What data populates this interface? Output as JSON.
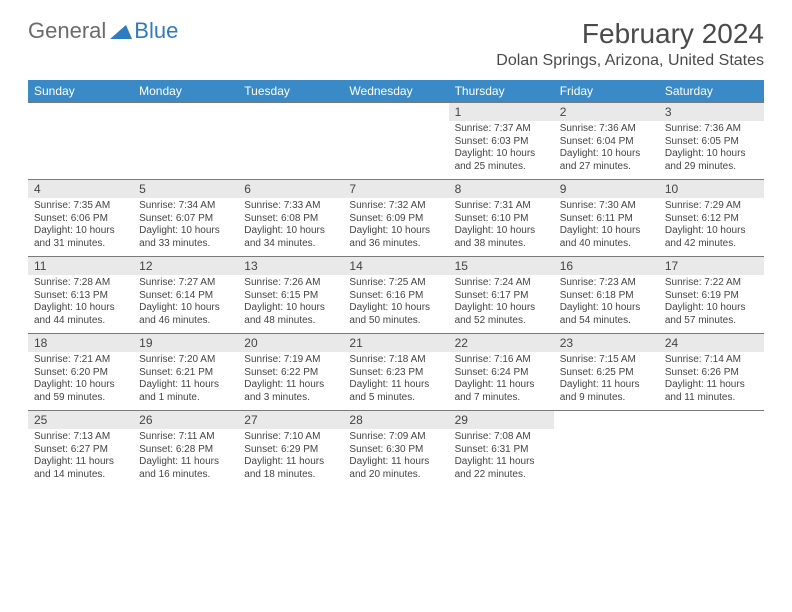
{
  "logo": {
    "gray": "General",
    "blue": "Blue"
  },
  "title": "February 2024",
  "location": "Dolan Springs, Arizona, United States",
  "colors": {
    "header_bg": "#3a8ac8",
    "header_text": "#ffffff",
    "daynum_bg": "#e9e9e9",
    "border": "#7a7a7a",
    "text": "#444444",
    "title_text": "#4a4a4a"
  },
  "weekdays": [
    "Sunday",
    "Monday",
    "Tuesday",
    "Wednesday",
    "Thursday",
    "Friday",
    "Saturday"
  ],
  "weeks": [
    [
      null,
      null,
      null,
      null,
      {
        "d": "1",
        "sr": "7:37 AM",
        "ss": "6:03 PM",
        "dl": "10 hours and 25 minutes."
      },
      {
        "d": "2",
        "sr": "7:36 AM",
        "ss": "6:04 PM",
        "dl": "10 hours and 27 minutes."
      },
      {
        "d": "3",
        "sr": "7:36 AM",
        "ss": "6:05 PM",
        "dl": "10 hours and 29 minutes."
      }
    ],
    [
      {
        "d": "4",
        "sr": "7:35 AM",
        "ss": "6:06 PM",
        "dl": "10 hours and 31 minutes."
      },
      {
        "d": "5",
        "sr": "7:34 AM",
        "ss": "6:07 PM",
        "dl": "10 hours and 33 minutes."
      },
      {
        "d": "6",
        "sr": "7:33 AM",
        "ss": "6:08 PM",
        "dl": "10 hours and 34 minutes."
      },
      {
        "d": "7",
        "sr": "7:32 AM",
        "ss": "6:09 PM",
        "dl": "10 hours and 36 minutes."
      },
      {
        "d": "8",
        "sr": "7:31 AM",
        "ss": "6:10 PM",
        "dl": "10 hours and 38 minutes."
      },
      {
        "d": "9",
        "sr": "7:30 AM",
        "ss": "6:11 PM",
        "dl": "10 hours and 40 minutes."
      },
      {
        "d": "10",
        "sr": "7:29 AM",
        "ss": "6:12 PM",
        "dl": "10 hours and 42 minutes."
      }
    ],
    [
      {
        "d": "11",
        "sr": "7:28 AM",
        "ss": "6:13 PM",
        "dl": "10 hours and 44 minutes."
      },
      {
        "d": "12",
        "sr": "7:27 AM",
        "ss": "6:14 PM",
        "dl": "10 hours and 46 minutes."
      },
      {
        "d": "13",
        "sr": "7:26 AM",
        "ss": "6:15 PM",
        "dl": "10 hours and 48 minutes."
      },
      {
        "d": "14",
        "sr": "7:25 AM",
        "ss": "6:16 PM",
        "dl": "10 hours and 50 minutes."
      },
      {
        "d": "15",
        "sr": "7:24 AM",
        "ss": "6:17 PM",
        "dl": "10 hours and 52 minutes."
      },
      {
        "d": "16",
        "sr": "7:23 AM",
        "ss": "6:18 PM",
        "dl": "10 hours and 54 minutes."
      },
      {
        "d": "17",
        "sr": "7:22 AM",
        "ss": "6:19 PM",
        "dl": "10 hours and 57 minutes."
      }
    ],
    [
      {
        "d": "18",
        "sr": "7:21 AM",
        "ss": "6:20 PM",
        "dl": "10 hours and 59 minutes."
      },
      {
        "d": "19",
        "sr": "7:20 AM",
        "ss": "6:21 PM",
        "dl": "11 hours and 1 minute."
      },
      {
        "d": "20",
        "sr": "7:19 AM",
        "ss": "6:22 PM",
        "dl": "11 hours and 3 minutes."
      },
      {
        "d": "21",
        "sr": "7:18 AM",
        "ss": "6:23 PM",
        "dl": "11 hours and 5 minutes."
      },
      {
        "d": "22",
        "sr": "7:16 AM",
        "ss": "6:24 PM",
        "dl": "11 hours and 7 minutes."
      },
      {
        "d": "23",
        "sr": "7:15 AM",
        "ss": "6:25 PM",
        "dl": "11 hours and 9 minutes."
      },
      {
        "d": "24",
        "sr": "7:14 AM",
        "ss": "6:26 PM",
        "dl": "11 hours and 11 minutes."
      }
    ],
    [
      {
        "d": "25",
        "sr": "7:13 AM",
        "ss": "6:27 PM",
        "dl": "11 hours and 14 minutes."
      },
      {
        "d": "26",
        "sr": "7:11 AM",
        "ss": "6:28 PM",
        "dl": "11 hours and 16 minutes."
      },
      {
        "d": "27",
        "sr": "7:10 AM",
        "ss": "6:29 PM",
        "dl": "11 hours and 18 minutes."
      },
      {
        "d": "28",
        "sr": "7:09 AM",
        "ss": "6:30 PM",
        "dl": "11 hours and 20 minutes."
      },
      {
        "d": "29",
        "sr": "7:08 AM",
        "ss": "6:31 PM",
        "dl": "11 hours and 22 minutes."
      },
      null,
      null
    ]
  ],
  "labels": {
    "sunrise": "Sunrise:",
    "sunset": "Sunset:",
    "daylight": "Daylight:"
  }
}
